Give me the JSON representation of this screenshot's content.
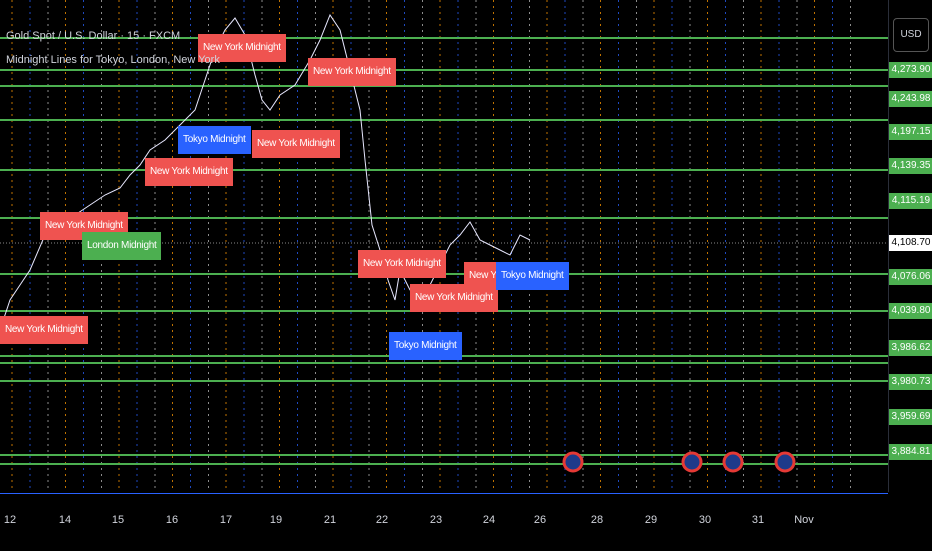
{
  "header": {
    "symbol": "Gold Spot / U.S. Dollar · 15 · FXCM",
    "indicator": "Midnight Lines for Tokyo, London, New York"
  },
  "price_axis": {
    "currency": "USD",
    "current": "4,108.70",
    "labels": [
      "4,273.90",
      "4,243.98",
      "4,197.15",
      "4,139.35",
      "4,115.19",
      "4,076.06",
      "4,039.80",
      "3,986.62",
      "3,980.73",
      "3,959.69",
      "3,884.81"
    ]
  },
  "time_axis": {
    "labels": [
      "12",
      "14",
      "15",
      "16",
      "17",
      "19",
      "21",
      "22",
      "23",
      "24",
      "26",
      "28",
      "29",
      "30",
      "31",
      "Nov"
    ]
  },
  "chart_labels": [
    {
      "text": "New York Midnight",
      "color": "#ef5350"
    },
    {
      "text": "New York Midnight",
      "color": "#ef5350"
    },
    {
      "text": "Tokyo Midnight",
      "color": "#2962ff"
    },
    {
      "text": "New York Midnight",
      "color": "#ef5350"
    },
    {
      "text": "New York Midnight",
      "color": "#ef5350"
    },
    {
      "text": "New York Midnight",
      "color": "#ef5350"
    },
    {
      "text": "London Midnight",
      "color": "#4caf50"
    },
    {
      "text": "New York Midnight",
      "color": "#ef5350"
    },
    {
      "text": "New York Midnight",
      "color": "#ef5350"
    },
    {
      "text": "New York Midnight",
      "color": "#ef5350"
    },
    {
      "text": "Tokyo Midnight",
      "color": "#2962ff"
    },
    {
      "text": "New York",
      "color": "#ef5350"
    },
    {
      "text": "Tokyo Midnight",
      "color": "#2962ff"
    }
  ]
}
